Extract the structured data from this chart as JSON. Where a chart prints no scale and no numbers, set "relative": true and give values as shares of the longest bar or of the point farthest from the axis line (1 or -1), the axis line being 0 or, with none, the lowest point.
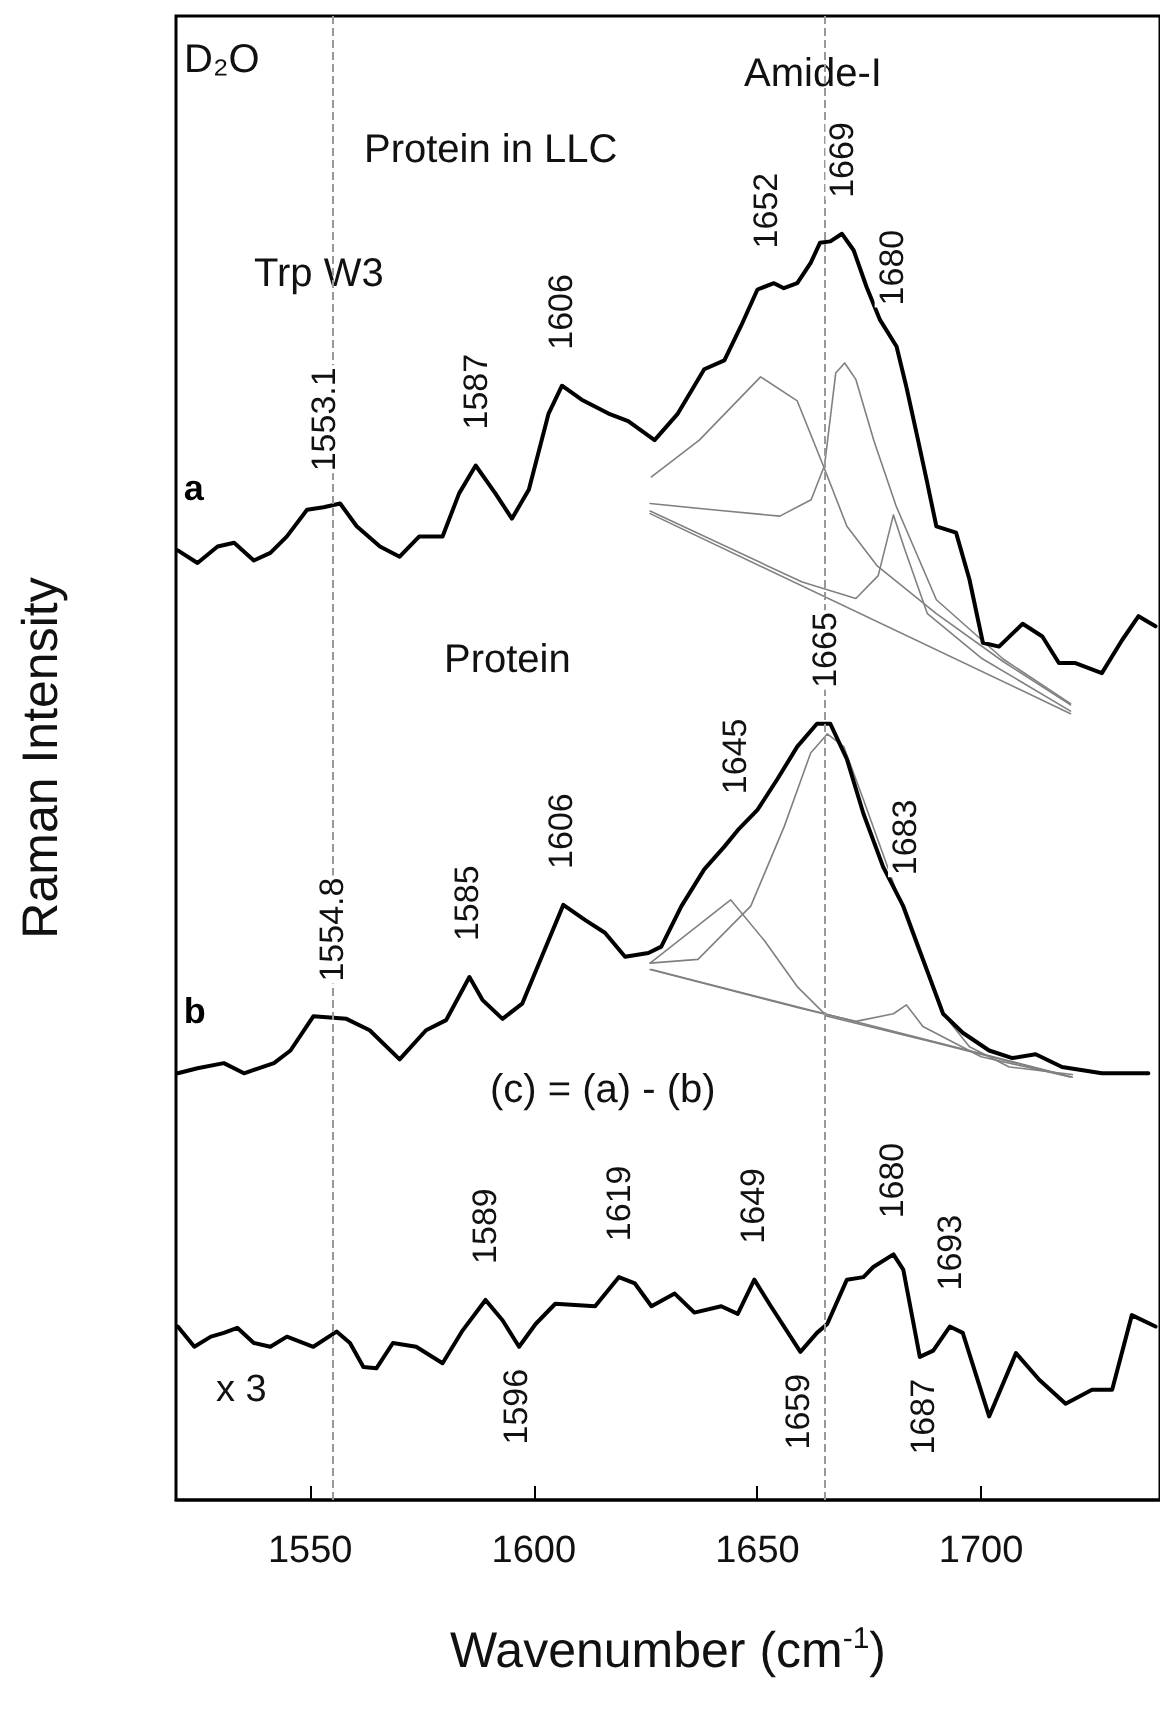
{
  "chart_data": {
    "type": "line",
    "xlabel": "Wavenumber (cm$^{-1}$)",
    "ylabel": "Raman Intensity",
    "relative": true,
    "xlim": [
      1520,
      1740
    ],
    "xticks": [
      1550,
      1600,
      1650,
      1700
    ],
    "tick_labels": "x",
    "grid": false,
    "legend": false,
    "marker": "none",
    "line_style": "solid",
    "series": [
      {
        "name": "a",
        "color": "#000000",
        "x": [
          1520.4,
          1524.8,
          1529.3,
          1533,
          1537.4,
          1541.1,
          1544.8,
          1549.3,
          1553,
          1556.7,
          1560.4,
          1565.6,
          1570,
          1574.4,
          1579.6,
          1583.3,
          1587,
          1591.4,
          1595.1,
          1598.9,
          1603.3,
          1606.3,
          1610.7,
          1616.7,
          1621.1,
          1627,
          1632.2,
          1638.1,
          1642.6,
          1646.3,
          1650,
          1653.7,
          1655.9,
          1658.9,
          1661.9,
          1664,
          1666.3,
          1668.9,
          1671.5,
          1674.4,
          1677.4,
          1681.1,
          1683.3,
          1685.6,
          1687.8,
          1690,
          1694.4,
          1697.4,
          1700.4,
          1704,
          1709.3,
          1713.7,
          1717.4,
          1721.1,
          1727,
          1731.5,
          1735.2,
          1739
        ],
        "values": [
          0.75,
          0.74,
          0.753,
          0.756,
          0.742,
          0.748,
          0.761,
          0.782,
          0.784,
          0.787,
          0.769,
          0.753,
          0.745,
          0.761,
          0.761,
          0.795,
          0.817,
          0.795,
          0.775,
          0.798,
          0.858,
          0.88,
          0.869,
          0.858,
          0.852,
          0.837,
          0.858,
          0.893,
          0.9,
          0.927,
          0.956,
          0.961,
          0.957,
          0.961,
          0.977,
          0.993,
          0.994,
          1.0,
          0.987,
          0.958,
          0.932,
          0.911,
          0.879,
          0.842,
          0.806,
          0.769,
          0.764,
          0.727,
          0.677,
          0.674,
          0.692,
          0.682,
          0.661,
          0.661,
          0.653,
          0.679,
          0.698,
          0.69
        ]
      },
      {
        "color": "#808080",
        "x": [
          1626,
          1720
        ],
        "values": [
          0.779,
          0.621
        ]
      },
      {
        "color": "#808080",
        "x": [
          1626.3,
          1637,
          1650.7,
          1658.9,
          1664.7,
          1670,
          1676.7,
          1690,
          1705,
          1720
        ],
        "values": [
          0.808,
          0.837,
          0.887,
          0.868,
          0.817,
          0.769,
          0.738,
          0.7,
          0.662,
          0.628
        ]
      },
      {
        "color": "#808080",
        "x": [
          1626,
          1640,
          1655,
          1662,
          1665,
          1667.5,
          1669.5,
          1672,
          1676,
          1681,
          1690,
          1705,
          1720
        ],
        "values": [
          0.787,
          0.782,
          0.777,
          0.79,
          0.817,
          0.89,
          0.898,
          0.885,
          0.837,
          0.785,
          0.711,
          0.664,
          0.629
        ]
      },
      {
        "color": "#808080",
        "x": [
          1626,
          1660,
          1672,
          1677,
          1680.4,
          1683,
          1688,
          1700,
          1720
        ],
        "values": [
          0.781,
          0.725,
          0.712,
          0.73,
          0.778,
          0.75,
          0.7,
          0.665,
          0.623
        ]
      },
      {
        "name": "b",
        "color": "#000000",
        "x": [
          1520.4,
          1524.8,
          1530.7,
          1535.2,
          1541.9,
          1545.6,
          1550.7,
          1558.1,
          1563.3,
          1570,
          1575.9,
          1580.4,
          1585.6,
          1588.5,
          1593,
          1597.4,
          1603.3,
          1606.6,
          1611.5,
          1615.9,
          1620.4,
          1625.6,
          1628.5,
          1633,
          1638.1,
          1642.6,
          1645.6,
          1650,
          1654.4,
          1658.9,
          1663.3,
          1666.3,
          1670,
          1673.7,
          1678.1,
          1682.6,
          1687,
          1691.5,
          1695.9,
          1701.8,
          1707,
          1712.2,
          1718.1,
          1727,
          1737.4
        ],
        "values": [
          0.337,
          0.341,
          0.345,
          0.337,
          0.345,
          0.355,
          0.382,
          0.38,
          0.371,
          0.348,
          0.371,
          0.379,
          0.413,
          0.395,
          0.38,
          0.392,
          0.442,
          0.47,
          0.458,
          0.448,
          0.429,
          0.432,
          0.437,
          0.469,
          0.498,
          0.516,
          0.529,
          0.545,
          0.569,
          0.595,
          0.613,
          0.613,
          0.585,
          0.542,
          0.5,
          0.469,
          0.427,
          0.384,
          0.369,
          0.355,
          0.349,
          0.352,
          0.342,
          0.337,
          0.337
        ]
      },
      {
        "color": "#808080",
        "x": [
          1626.3,
          1720.4
        ],
        "values": [
          0.419,
          0.334
        ]
      },
      {
        "color": "#808080",
        "x": [
          1626,
          1644,
          1651.5,
          1659,
          1665.6,
          1690,
          1720
        ],
        "values": [
          0.424,
          0.474,
          0.442,
          0.405,
          0.382,
          0.361,
          0.334
        ]
      },
      {
        "color": "#808080",
        "x": [
          1626,
          1636.7,
          1648.5,
          1656,
          1661.9,
          1665.6,
          1669.3,
          1673.7,
          1679.6,
          1685.6,
          1691.5,
          1697.4,
          1706.3,
          1720.4
        ],
        "values": [
          0.424,
          0.427,
          0.469,
          0.532,
          0.59,
          0.605,
          0.595,
          0.553,
          0.495,
          0.437,
          0.384,
          0.358,
          0.342,
          0.336
        ]
      },
      {
        "color": "#808080",
        "x": [
          1626,
          1660,
          1672,
          1680.4,
          1683.3,
          1687,
          1700,
          1720
        ],
        "values": [
          0.419,
          0.388,
          0.378,
          0.384,
          0.391,
          0.374,
          0.35,
          0.334
        ]
      },
      {
        "color": "#000000",
        "x": [
          1520.4,
          1524.1,
          1527.8,
          1530.7,
          1533.7,
          1537.4,
          1541.1,
          1544.8,
          1550.7,
          1555.9,
          1558.9,
          1561.9,
          1564.8,
          1568.5,
          1573.7,
          1579.6,
          1584.1,
          1589.2,
          1593,
          1596.7,
          1600.4,
          1604.8,
          1613.7,
          1619,
          1622.6,
          1626.3,
          1631.5,
          1635.9,
          1641.9,
          1645.6,
          1649.3,
          1653,
          1659.6,
          1663.3,
          1665.6,
          1670,
          1673.7,
          1675.9,
          1680.4,
          1682.6,
          1686.3,
          1689.3,
          1693,
          1695.9,
          1701.8,
          1707.8,
          1713,
          1718.9,
          1724.8,
          1729.3,
          1733.7,
          1739
        ],
        "values": [
          0.137,
          0.121,
          0.129,
          0.132,
          0.136,
          0.124,
          0.121,
          0.129,
          0.121,
          0.133,
          0.124,
          0.105,
          0.104,
          0.124,
          0.121,
          0.108,
          0.134,
          0.158,
          0.142,
          0.121,
          0.139,
          0.155,
          0.153,
          0.176,
          0.171,
          0.153,
          0.163,
          0.148,
          0.153,
          0.147,
          0.174,
          0.153,
          0.117,
          0.132,
          0.139,
          0.174,
          0.176,
          0.184,
          0.194,
          0.182,
          0.113,
          0.118,
          0.137,
          0.132,
          0.066,
          0.116,
          0.095,
          0.076,
          0.087,
          0.087,
          0.146,
          0.137
        ]
      }
    ],
    "ref_lines": [
      {
        "axis": "x",
        "value": 1555,
        "color": "#999999",
        "line_style": "dashed"
      },
      {
        "axis": "x",
        "value": 1665,
        "color": "#999999",
        "line_style": "dashed"
      }
    ],
    "annotations": [
      "D₂O",
      "Protein in LLC",
      "Amide-I",
      "Trp W3",
      "Protein",
      "(c) = (a) - (b)",
      "x 3",
      {
        "text": "1553.1",
        "x": 1553.1,
        "y": 0.784
      },
      {
        "text": "1587",
        "x": 1587,
        "y": 0.817
      },
      {
        "text": "1606",
        "x": 1606,
        "y": 0.88
      },
      {
        "text": "1652",
        "x": 1652,
        "y": 0.96
      },
      {
        "text": "1669",
        "x": 1669,
        "y": 1.0
      },
      {
        "text": "1680",
        "x": 1680,
        "y": 0.915
      },
      {
        "text": "1554.8",
        "x": 1554.8,
        "y": 0.381
      },
      {
        "text": "1585",
        "x": 1585,
        "y": 0.413
      },
      {
        "text": "1606",
        "x": 1606,
        "y": 0.47
      },
      {
        "text": "1645",
        "x": 1645,
        "y": 0.529
      },
      {
        "text": "1665",
        "x": 1665,
        "y": 0.613
      },
      {
        "text": "1683",
        "x": 1683,
        "y": 0.465
      },
      {
        "text": "1589",
        "x": 1589,
        "y": 0.158
      },
      {
        "text": "1596",
        "x": 1596,
        "y": 0.121
      },
      {
        "text": "1619",
        "x": 1619,
        "y": 0.176
      },
      {
        "text": "1649",
        "x": 1649,
        "y": 0.174
      },
      {
        "text": "1659",
        "x": 1659,
        "y": 0.117
      },
      {
        "text": "1680",
        "x": 1680,
        "y": 0.194
      },
      {
        "text": "1687",
        "x": 1687,
        "y": 0.113
      },
      {
        "text": "1693",
        "x": 1693,
        "y": 0.137
      }
    ]
  }
}
